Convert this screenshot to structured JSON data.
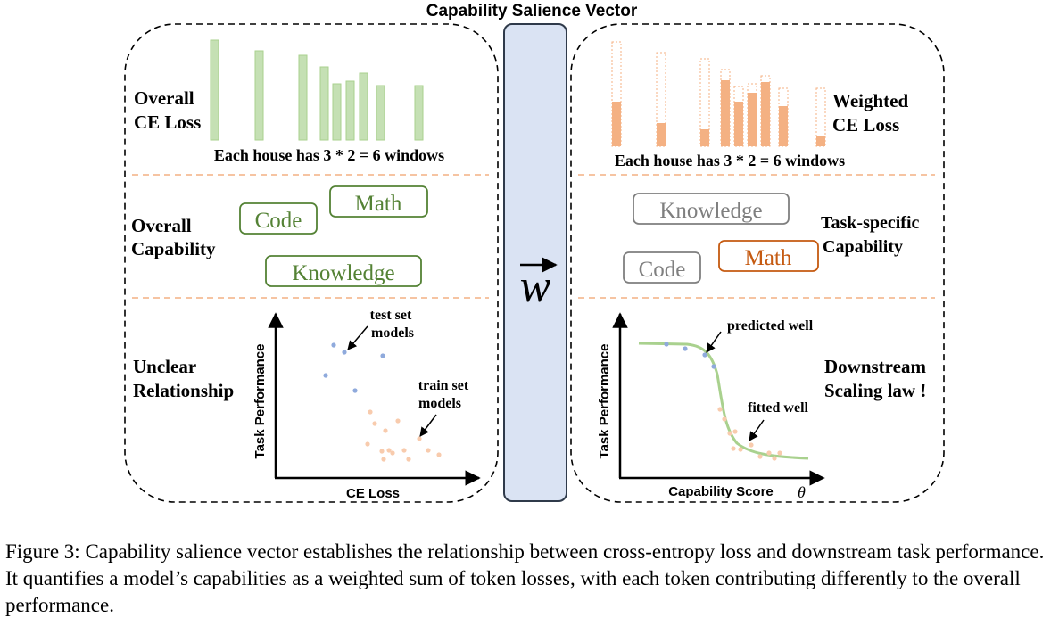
{
  "title": "Capability Salience Vector",
  "vector_symbol": "w",
  "left_panel": {
    "ce_loss_label_line1": "Overall",
    "ce_loss_label_line2": "CE Loss",
    "bars_caption": "Each house has 3 * 2 = 6 windows",
    "capability_label_line1": "Overall",
    "capability_label_line2": "Capability",
    "boxes": [
      "Math",
      "Code",
      "Knowledge"
    ],
    "relationship_label_line1": "Unclear",
    "relationship_label_line2": "Relationship",
    "y_axis_label": "Task Performance",
    "x_axis_label": "CE Loss",
    "annotation_test_line1": "test set",
    "annotation_test_line2": "models",
    "annotation_train_line1": "train set",
    "annotation_train_line2": "models"
  },
  "right_panel": {
    "ce_loss_label_line1": "Weighted",
    "ce_loss_label_line2": "CE Loss",
    "bars_caption": "Each house has 3 * 2 = 6 windows",
    "capability_label_line1": "Task-specific",
    "capability_label_line2": "Capability",
    "boxes": [
      "Knowledge",
      "Math",
      "Code"
    ],
    "scaling_label_line1": "Downstream",
    "scaling_label_line2": "Scaling law !",
    "y_axis_label": "Task Performance",
    "x_axis_label": "Capability Score",
    "theta_symbol": "θ",
    "annotation_predicted": "predicted well",
    "annotation_fitted": "fitted well"
  },
  "colors": {
    "green_bar": "#c5e0b4",
    "green_bar_edge": "#a9d18e",
    "green_box": "#548235",
    "orange_bar": "#f4b183",
    "orange_box": "#c55a11",
    "gray_box": "#7f7f7f",
    "blue_dot": "#8faadc",
    "orange_dot": "#f8cbad",
    "curve": "#a9d18e",
    "center_fill": "#dae3f3",
    "center_edge": "#2f3a4a",
    "divider": "#f4b183"
  },
  "caption": "Figure 3: Capability salience vector establishes the relationship between cross-entropy loss and downstream task performance. It quantifies a model’s capabilities as a weighted sum of token losses, with each token contributing differently to the overall performance."
}
